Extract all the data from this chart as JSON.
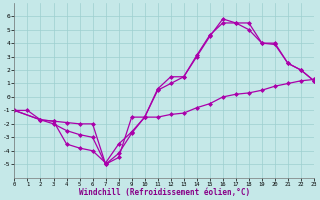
{
  "xlabel": "Windchill (Refroidissement éolien,°C)",
  "xlim": [
    0,
    23
  ],
  "ylim": [
    -6,
    7
  ],
  "yticks": [
    -5,
    -4,
    -3,
    -2,
    -1,
    0,
    1,
    2,
    3,
    4,
    5,
    6
  ],
  "xticks": [
    0,
    1,
    2,
    3,
    4,
    5,
    6,
    7,
    8,
    9,
    10,
    11,
    12,
    13,
    14,
    15,
    16,
    17,
    18,
    19,
    20,
    21,
    22,
    23
  ],
  "bg_color": "#c5e8e8",
  "grid_color": "#9dcfcf",
  "line_color": "#aa00aa",
  "lines": [
    {
      "x": [
        0,
        1,
        2,
        3,
        4,
        5,
        6,
        7,
        8,
        9,
        10,
        11,
        12,
        13,
        14,
        15,
        16,
        17,
        18,
        19,
        20,
        21,
        22,
        23
      ],
      "y": [
        -1,
        -1,
        -1.7,
        -1.8,
        -1.9,
        -2.0,
        -2.0,
        -5.0,
        -4.5,
        -1.5,
        -1.5,
        -1.5,
        -1.3,
        -1.2,
        -0.8,
        -0.5,
        0.0,
        0.2,
        0.3,
        0.5,
        0.8,
        1.0,
        1.2,
        1.3
      ]
    },
    {
      "x": [
        0,
        2,
        3,
        4,
        5,
        6,
        7,
        8,
        9,
        10,
        11,
        12,
        13,
        14,
        15,
        16,
        17,
        18,
        19,
        20,
        21,
        22,
        23
      ],
      "y": [
        -1,
        -1.7,
        -1.8,
        -3.5,
        -3.8,
        -4.0,
        -4.9,
        -3.5,
        -2.6,
        -1.5,
        0.5,
        1.0,
        1.5,
        3.1,
        4.6,
        5.5,
        5.5,
        5.0,
        4.0,
        4.0,
        2.5,
        2.0,
        1.2
      ]
    },
    {
      "x": [
        0,
        2,
        3,
        4,
        5,
        6,
        7,
        8,
        9,
        10,
        11,
        12,
        13,
        14,
        15,
        16,
        17,
        18,
        19,
        20,
        21,
        22,
        23
      ],
      "y": [
        -1,
        -1.7,
        -2.0,
        -2.5,
        -2.8,
        -3.0,
        -5.0,
        -4.2,
        -2.7,
        -1.5,
        0.6,
        1.5,
        1.5,
        3.0,
        4.5,
        5.8,
        5.5,
        5.5,
        4.0,
        3.9,
        2.5,
        2.0,
        1.2
      ]
    }
  ],
  "marker": "D",
  "markersize": 2.0,
  "linewidth": 0.9
}
